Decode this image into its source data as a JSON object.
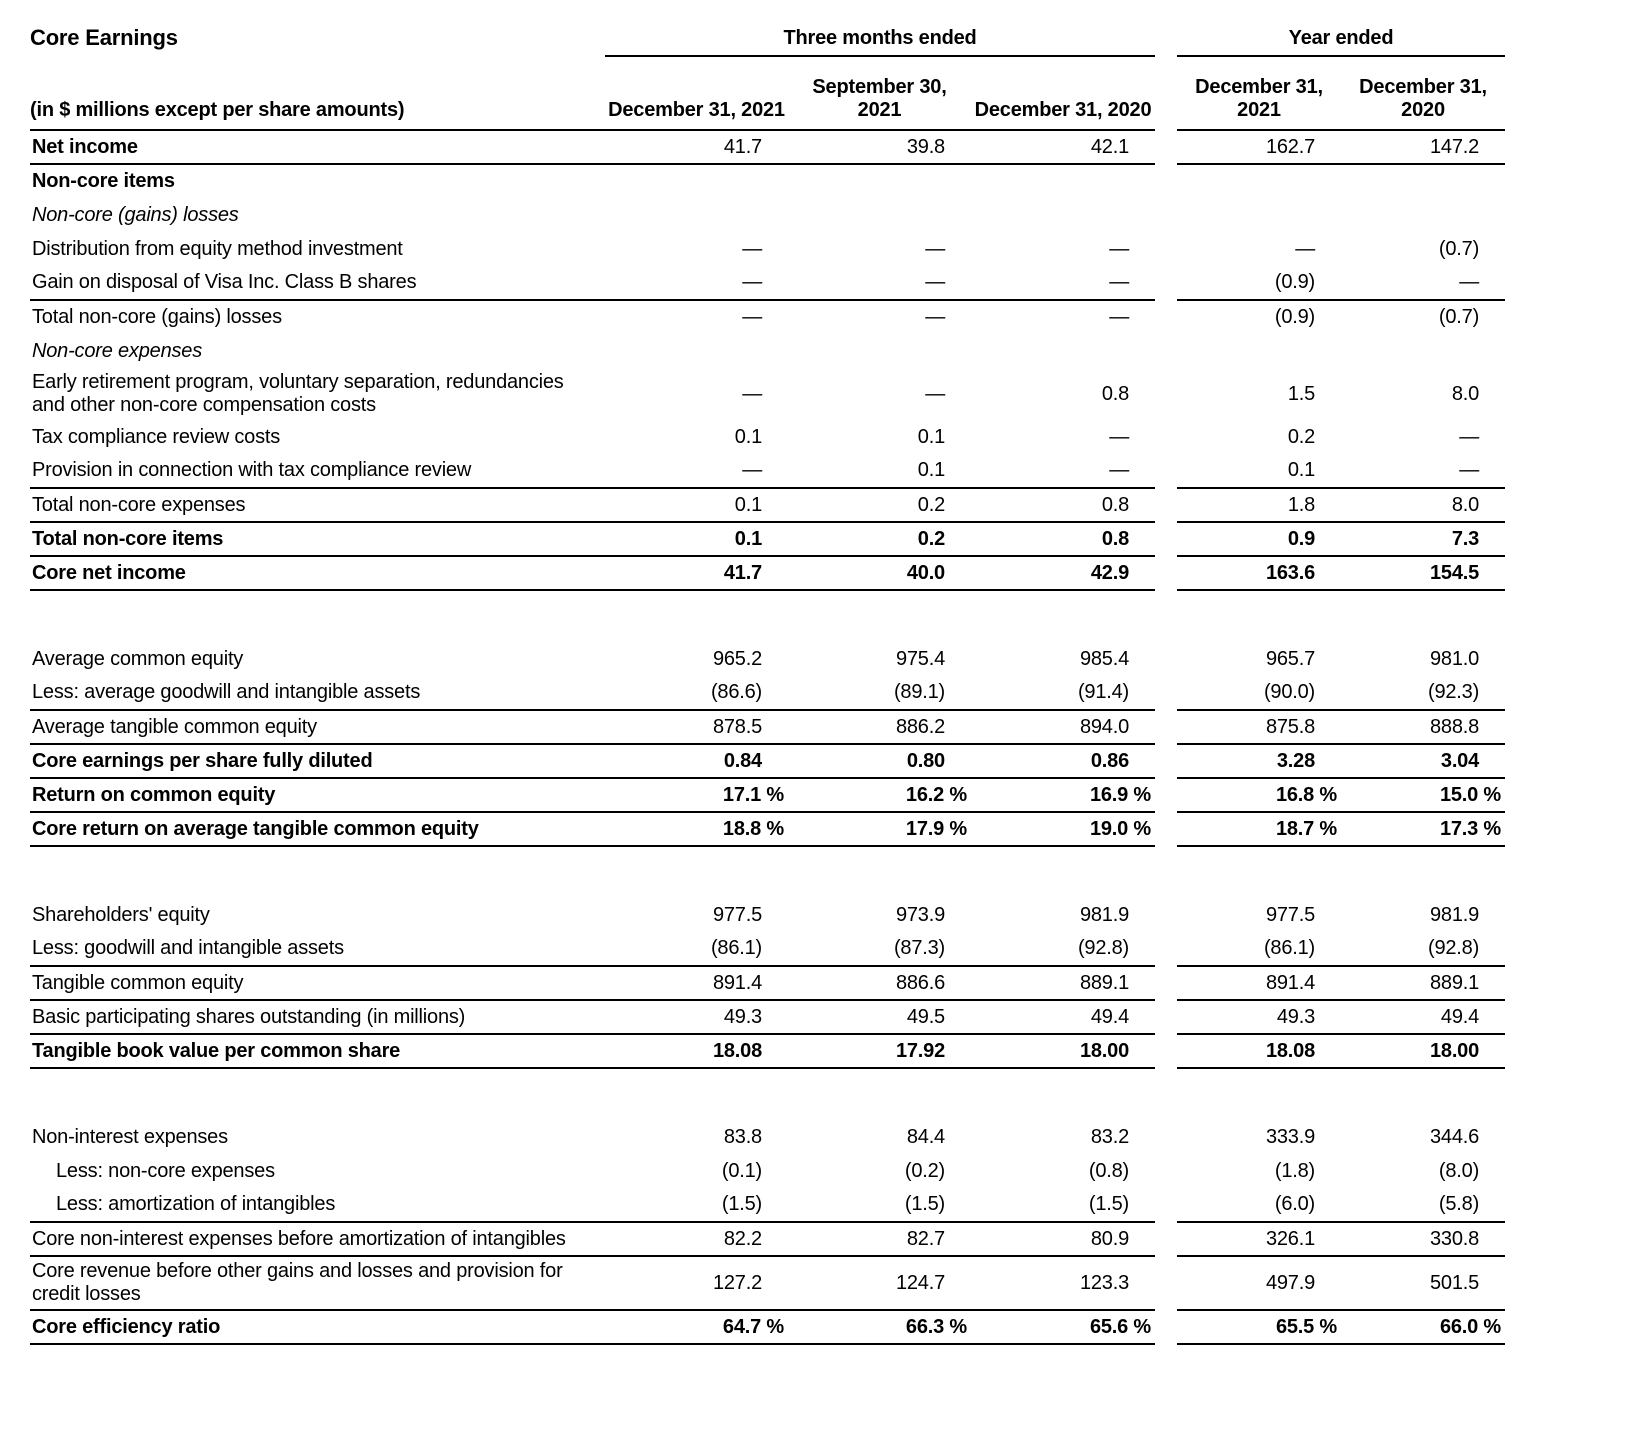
{
  "title": "Core Earnings",
  "colors": {
    "text": "#000000",
    "background": "#ffffff",
    "rule": "#000000"
  },
  "table": {
    "units_note": "(in $ millions except per share amounts)",
    "col_groups": [
      {
        "label": "Three months ended",
        "span": 3
      },
      {
        "label": "Year ended",
        "span": 2
      }
    ],
    "columns": [
      "December 31, 2021",
      "September 30,\n2021",
      "December 31, 2020",
      "December 31,\n2021",
      "December 31,\n2020"
    ],
    "rows": [
      {
        "label": "Net income",
        "values": [
          "41.7",
          "39.8",
          "42.1",
          "162.7",
          "147.2"
        ],
        "style": "bold_label underline"
      },
      {
        "label": "Non-core items",
        "values": [],
        "style": "bold_label"
      },
      {
        "label": "Non-core (gains) losses",
        "values": [],
        "style": "italic"
      },
      {
        "label": "Distribution from equity method investment",
        "values": [
          "—",
          "—",
          "—",
          "—",
          "(0.7)"
        ],
        "style": ""
      },
      {
        "label": "Gain on disposal of Visa Inc. Class B shares",
        "values": [
          "—",
          "—",
          "—",
          "(0.9)",
          "—"
        ],
        "style": "underline"
      },
      {
        "label": "Total non-core (gains) losses",
        "values": [
          "—",
          "—",
          "—",
          "(0.9)",
          "(0.7)"
        ],
        "style": ""
      },
      {
        "label": "Non-core expenses",
        "values": [],
        "style": "italic"
      },
      {
        "label": "Early retirement program, voluntary separation, redundancies and other non-core compensation costs",
        "values": [
          "—",
          "—",
          "0.8",
          "1.5",
          "8.0"
        ],
        "style": ""
      },
      {
        "label": "Tax compliance review costs",
        "values": [
          "0.1",
          "0.1",
          "—",
          "0.2",
          "—"
        ],
        "style": ""
      },
      {
        "label": "Provision in connection with tax compliance review",
        "values": [
          "—",
          "0.1",
          "—",
          "0.1",
          "—"
        ],
        "style": "underline"
      },
      {
        "label": "Total non-core expenses",
        "values": [
          "0.1",
          "0.2",
          "0.8",
          "1.8",
          "8.0"
        ],
        "style": "underline"
      },
      {
        "label": "Total non-core items",
        "values": [
          "0.1",
          "0.2",
          "0.8",
          "0.9",
          "7.3"
        ],
        "style": "bold underline"
      },
      {
        "label": "Core net income",
        "values": [
          "41.7",
          "40.0",
          "42.9",
          "163.6",
          "154.5"
        ],
        "style": "bold underline"
      },
      {
        "style": "spacer"
      },
      {
        "label": "Average common equity",
        "values": [
          "965.2",
          "975.4",
          "985.4",
          "965.7",
          "981.0"
        ],
        "style": ""
      },
      {
        "label": "Less: average goodwill and intangible assets",
        "values": [
          "(86.6)",
          "(89.1)",
          "(91.4)",
          "(90.0)",
          "(92.3)"
        ],
        "style": "underline"
      },
      {
        "label": "Average tangible common equity",
        "values": [
          "878.5",
          "886.2",
          "894.0",
          "875.8",
          "888.8"
        ],
        "style": "underline"
      },
      {
        "label": "Core earnings per share fully diluted",
        "values": [
          "0.84",
          "0.80",
          "0.86",
          "3.28",
          "3.04"
        ],
        "style": "bold underline"
      },
      {
        "label": "Return on common equity",
        "values": [
          "17.1 %",
          "16.2 %",
          "16.9 %",
          "16.8 %",
          "15.0 %"
        ],
        "style": "bold underline"
      },
      {
        "label": "Core return on average tangible common equity",
        "values": [
          "18.8 %",
          "17.9 %",
          "19.0 %",
          "18.7 %",
          "17.3 %"
        ],
        "style": "bold underline"
      },
      {
        "style": "spacer"
      },
      {
        "label": "Shareholders' equity",
        "values": [
          "977.5",
          "973.9",
          "981.9",
          "977.5",
          "981.9"
        ],
        "style": ""
      },
      {
        "label": "Less: goodwill and intangible assets",
        "values": [
          "(86.1)",
          "(87.3)",
          "(92.8)",
          "(86.1)",
          "(92.8)"
        ],
        "style": "underline"
      },
      {
        "label": "Tangible common equity",
        "values": [
          "891.4",
          "886.6",
          "889.1",
          "891.4",
          "889.1"
        ],
        "style": "underline"
      },
      {
        "label": "Basic participating shares outstanding (in millions)",
        "values": [
          "49.3",
          "49.5",
          "49.4",
          "49.3",
          "49.4"
        ],
        "style": "underline"
      },
      {
        "label": "Tangible book value per common share",
        "values": [
          "18.08",
          "17.92",
          "18.00",
          "18.08",
          "18.00"
        ],
        "style": "bold underline"
      },
      {
        "style": "spacer"
      },
      {
        "label": "Non-interest expenses",
        "values": [
          "83.8",
          "84.4",
          "83.2",
          "333.9",
          "344.6"
        ],
        "style": ""
      },
      {
        "label": "Less: non-core expenses",
        "values": [
          "(0.1)",
          "(0.2)",
          "(0.8)",
          "(1.8)",
          "(8.0)"
        ],
        "style": "indent"
      },
      {
        "label": "Less: amortization of intangibles",
        "values": [
          "(1.5)",
          "(1.5)",
          "(1.5)",
          "(6.0)",
          "(5.8)"
        ],
        "style": "indent underline"
      },
      {
        "label": "Core non-interest expenses before amortization of intangibles",
        "values": [
          "82.2",
          "82.7",
          "80.9",
          "326.1",
          "330.8"
        ],
        "style": "underline"
      },
      {
        "label": "Core revenue before other gains and losses and provision for credit losses",
        "values": [
          "127.2",
          "124.7",
          "123.3",
          "497.9",
          "501.5"
        ],
        "style": "underline"
      },
      {
        "label": "Core efficiency ratio",
        "values": [
          "64.7 %",
          "66.3 %",
          "65.6 %",
          "65.5 %",
          "66.0 %"
        ],
        "style": "bold underline"
      }
    ]
  }
}
